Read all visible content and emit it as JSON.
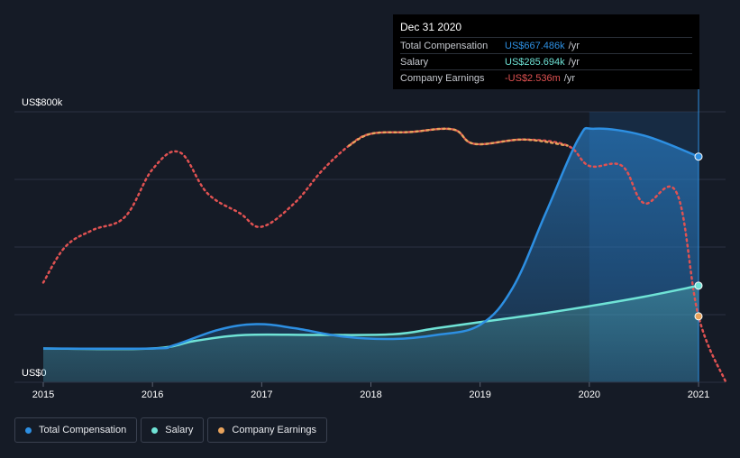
{
  "chart_data": {
    "type": "line",
    "y_axis": {
      "ticks": [
        "US$0",
        "US$800k"
      ],
      "ylim": [
        0,
        800000
      ]
    },
    "x_axis": {
      "ticks": [
        "2015",
        "2016",
        "2017",
        "2018",
        "2019",
        "2020",
        "2021"
      ],
      "xlim": [
        2015,
        2021.25
      ]
    },
    "grid": true,
    "series": [
      {
        "name": "Total Compensation",
        "color": "#2d8fe2",
        "points": [
          [
            2015,
            100000
          ],
          [
            2016,
            100000
          ],
          [
            2016.2,
            110000
          ],
          [
            2016.6,
            155000
          ],
          [
            2016.95,
            172000
          ],
          [
            2017.3,
            160000
          ],
          [
            2017.75,
            135000
          ],
          [
            2018.2,
            128000
          ],
          [
            2018.6,
            140000
          ],
          [
            2019.0,
            170000
          ],
          [
            2019.3,
            280000
          ],
          [
            2019.6,
            500000
          ],
          [
            2019.9,
            720000
          ],
          [
            2020.05,
            750000
          ],
          [
            2020.5,
            730000
          ],
          [
            2021,
            667486
          ]
        ]
      },
      {
        "name": "Salary",
        "color": "#6fe3d6",
        "points": [
          [
            2015,
            100000
          ],
          [
            2016,
            100000
          ],
          [
            2016.4,
            123000
          ],
          [
            2016.85,
            140000
          ],
          [
            2017.5,
            140000
          ],
          [
            2018.2,
            142000
          ],
          [
            2018.6,
            160000
          ],
          [
            2019.0,
            178000
          ],
          [
            2019.5,
            200000
          ],
          [
            2020.0,
            225000
          ],
          [
            2020.5,
            253000
          ],
          [
            2021,
            285694
          ]
        ]
      },
      {
        "name": "Company Earnings",
        "color_positive": "#e8a35c",
        "color_negative": "#e05252",
        "points": [
          [
            2015,
            295000
          ],
          [
            2015.2,
            400000
          ],
          [
            2015.45,
            450000
          ],
          [
            2015.75,
            490000
          ],
          [
            2016.0,
            630000
          ],
          [
            2016.25,
            680000
          ],
          [
            2016.5,
            560000
          ],
          [
            2016.8,
            500000
          ],
          [
            2017.0,
            460000
          ],
          [
            2017.3,
            530000
          ],
          [
            2017.55,
            625000
          ],
          [
            2017.8,
            700000
          ],
          [
            2018.0,
            735000
          ],
          [
            2018.35,
            740000
          ],
          [
            2018.75,
            748000
          ],
          [
            2018.95,
            705000
          ],
          [
            2019.4,
            718000
          ],
          [
            2019.8,
            700000
          ],
          [
            2020.0,
            640000
          ],
          [
            2020.3,
            640000
          ],
          [
            2020.5,
            530000
          ],
          [
            2020.8,
            560000
          ],
          [
            2021.0,
            195000
          ],
          [
            2021.25,
            0
          ]
        ]
      }
    ],
    "tooltip": {
      "date": "Dec 31 2020",
      "rows": [
        {
          "name": "Total Compensation",
          "value": "US$667.486k",
          "unit": "/yr",
          "color": "#2d8fe2"
        },
        {
          "name": "Salary",
          "value": "US$285.694k",
          "unit": "/yr",
          "color": "#6fe3d6"
        },
        {
          "name": "Company Earnings",
          "value": "-US$2.536m",
          "unit": "/yr",
          "color": "#e05252"
        }
      ]
    },
    "highlight_start": 2020.0,
    "highlight_end": 2021.0,
    "legend": [
      {
        "label": "Total Compensation",
        "color": "#2d8fe2"
      },
      {
        "label": "Salary",
        "color": "#6fe3d6"
      },
      {
        "label": "Company Earnings",
        "color": "#e8a35c"
      }
    ]
  }
}
